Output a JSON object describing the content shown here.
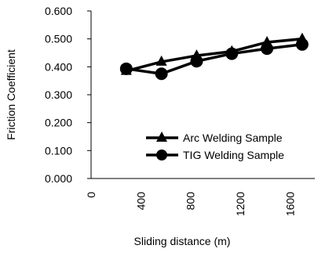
{
  "chart_data": {
    "type": "line",
    "title": "",
    "xlabel": "Sliding distance  (m)",
    "ylabel": "Friction Coefficient",
    "xlim": [
      0,
      1800
    ],
    "ylim": [
      0,
      0.6
    ],
    "x_ticks": [
      "0",
      "400",
      "800",
      "1200",
      "1600"
    ],
    "x_tick_values": [
      0,
      400,
      800,
      1200,
      1600
    ],
    "y_ticks": [
      "0.000",
      "0.100",
      "0.200",
      "0.300",
      "0.400",
      "0.500",
      "0.600"
    ],
    "y_tick_values": [
      0,
      0.1,
      0.2,
      0.3,
      0.4,
      0.5,
      0.6
    ],
    "grid": false,
    "legend_position": "inside-right",
    "series": [
      {
        "name": "Arc Welding Sample",
        "marker": "triangle",
        "color": "#000000",
        "x": [
          283,
          566,
          849,
          1132,
          1415,
          1698
        ],
        "y": [
          0.385,
          0.418,
          0.44,
          0.455,
          0.488,
          0.5
        ]
      },
      {
        "name": "TIG Welding Sample",
        "marker": "circle",
        "color": "#000000",
        "x": [
          283,
          566,
          849,
          1132,
          1415,
          1698
        ],
        "y": [
          0.393,
          0.375,
          0.42,
          0.447,
          0.465,
          0.48
        ]
      }
    ]
  }
}
